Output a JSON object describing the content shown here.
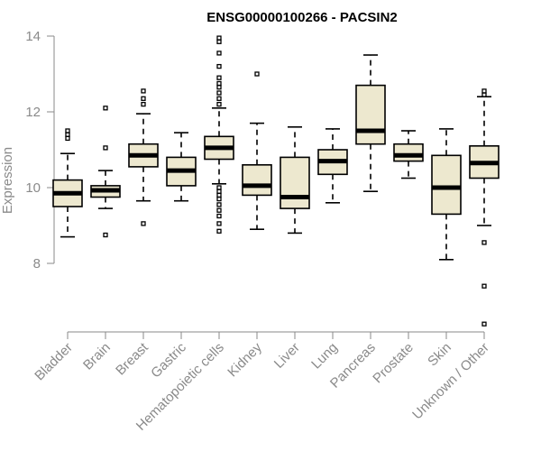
{
  "chart_data": {
    "type": "boxplot",
    "title": "ENSG00000100266 - PACSIN2",
    "xlabel": "",
    "ylabel": "Expression",
    "ylim": [
      6.2,
      14.2
    ],
    "yticks": [
      8,
      10,
      12,
      14
    ],
    "box_color": "#ede8cf",
    "categories": [
      "Bladder",
      "Brain",
      "Breast",
      "Gastric",
      "Hematopoietic cells",
      "Kidney",
      "Liver",
      "Lung",
      "Pancreas",
      "Prostate",
      "Skin",
      "Unknown / Other"
    ],
    "boxes": [
      {
        "label": "Bladder",
        "whislo": 8.7,
        "q1": 9.5,
        "med": 9.85,
        "q3": 10.2,
        "whishi": 10.9,
        "fliers": [
          11.3,
          11.4,
          11.5
        ]
      },
      {
        "label": "Brain",
        "whislo": 9.45,
        "q1": 9.75,
        "med": 9.93,
        "q3": 10.05,
        "whishi": 10.45,
        "fliers": [
          8.75,
          11.05,
          12.1
        ]
      },
      {
        "label": "Breast",
        "whislo": 9.65,
        "q1": 10.55,
        "med": 10.85,
        "q3": 11.15,
        "whishi": 11.95,
        "fliers": [
          9.05,
          12.2,
          12.35,
          12.55
        ]
      },
      {
        "label": "Gastric",
        "whislo": 9.65,
        "q1": 10.05,
        "med": 10.45,
        "q3": 10.8,
        "whishi": 11.45,
        "fliers": []
      },
      {
        "label": "Hematopoietic cells",
        "whislo": 10.1,
        "q1": 10.75,
        "med": 11.05,
        "q3": 11.35,
        "whishi": 12.1,
        "fliers": [
          8.85,
          9.05,
          9.25,
          9.4,
          9.55,
          9.7,
          9.8,
          9.9,
          10.0,
          12.2,
          12.35,
          12.5,
          12.65,
          12.75,
          12.9,
          13.2,
          13.55,
          13.85,
          13.95
        ]
      },
      {
        "label": "Kidney",
        "whislo": 8.9,
        "q1": 9.8,
        "med": 10.05,
        "q3": 10.6,
        "whishi": 11.7,
        "fliers": [
          13.0
        ]
      },
      {
        "label": "Liver",
        "whislo": 8.8,
        "q1": 9.45,
        "med": 9.75,
        "q3": 10.8,
        "whishi": 11.6,
        "fliers": []
      },
      {
        "label": "Lung",
        "whislo": 9.6,
        "q1": 10.35,
        "med": 10.7,
        "q3": 11.0,
        "whishi": 11.55,
        "fliers": []
      },
      {
        "label": "Pancreas",
        "whislo": 9.9,
        "q1": 11.15,
        "med": 11.5,
        "q3": 12.7,
        "whishi": 13.5,
        "fliers": []
      },
      {
        "label": "Prostate",
        "whislo": 10.25,
        "q1": 10.7,
        "med": 10.85,
        "q3": 11.15,
        "whishi": 11.5,
        "fliers": []
      },
      {
        "label": "Skin",
        "whislo": 8.1,
        "q1": 9.3,
        "med": 10.0,
        "q3": 10.85,
        "whishi": 11.55,
        "fliers": []
      },
      {
        "label": "Unknown / Other",
        "whislo": 9.0,
        "q1": 10.25,
        "med": 10.65,
        "q3": 11.1,
        "whishi": 12.4,
        "fliers": [
          6.4,
          7.4,
          8.55,
          12.45,
          12.55
        ]
      }
    ]
  }
}
